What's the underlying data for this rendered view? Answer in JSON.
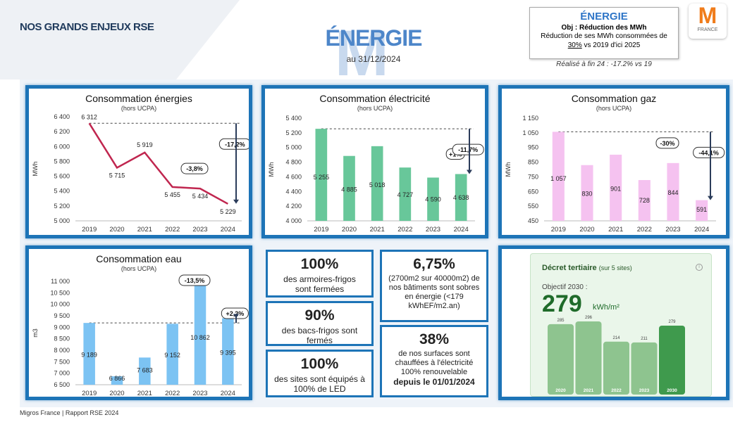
{
  "header": {
    "section_title": "NOS GRANDS ENJEUX RSE",
    "bg_letter": "M",
    "theme_title": "ÉNERGIE",
    "date": "au 31/12/2024"
  },
  "objective": {
    "title": "ÉNERGIE",
    "obj_label": "Obj : Réduction des MWh",
    "line1": "Réduction de ses MWh consommées de",
    "pct": "30%",
    "line2_suffix": " vs 2019 d'ici 2025",
    "realise": "Réalisé à fin 24 : -17.2% vs 19"
  },
  "logo": {
    "letter": "M",
    "sub": "FRANCE",
    "color": "#f07c1b"
  },
  "colors": {
    "blue": "#1d74b7",
    "line": "#c0264f",
    "green": "#68c79a",
    "pink": "#f5c2f0",
    "water": "#7cc3f3"
  },
  "chart_data": [
    {
      "type": "line",
      "title": "Consommation énergies",
      "subtitle": "(hors UCPA)",
      "ylabel": "MWh",
      "categories": [
        "2019",
        "2020",
        "2021",
        "2022",
        "2023",
        "2024"
      ],
      "values": [
        6312,
        5715,
        5919,
        5455,
        5434,
        5229
      ],
      "value_labels": [
        "6 312",
        "5 715",
        "5 919",
        "5 455",
        "5 434",
        "5 229"
      ],
      "yticks": [
        5000,
        5200,
        5400,
        5600,
        5800,
        6000,
        6200,
        6400
      ],
      "ytick_labels": [
        "5 000",
        "5 200",
        "5 400",
        "5 600",
        "5 800",
        "6 000",
        "6 200",
        "6 400"
      ],
      "ylim": [
        5000,
        6400
      ],
      "annotations": [
        "-3,8%",
        "-17,2%"
      ]
    },
    {
      "type": "bar",
      "title": "Consommation électricité",
      "subtitle": "(hors UCPA)",
      "ylabel": "MWh",
      "categories": [
        "2019",
        "2020",
        "2021",
        "2022",
        "2023",
        "2024"
      ],
      "values": [
        5255,
        4885,
        5018,
        4727,
        4590,
        4638
      ],
      "value_labels": [
        "5 255",
        "4 885",
        "5 018",
        "4 727",
        "4 590",
        "4 638"
      ],
      "yticks": [
        4000,
        4200,
        4400,
        4600,
        4800,
        5000,
        5200,
        5400
      ],
      "ytick_labels": [
        "4 000",
        "4 200",
        "4 400",
        "4 600",
        "4 800",
        "5 000",
        "5 200",
        "5 400"
      ],
      "ylim": [
        4000,
        5400
      ],
      "annotations": [
        "+1%",
        "-11,7%"
      ]
    },
    {
      "type": "bar",
      "title": "Consommation gaz",
      "subtitle": "(hors UCPA)",
      "ylabel": "MWh",
      "categories": [
        "2019",
        "2020",
        "2021",
        "2022",
        "2023",
        "2024"
      ],
      "values": [
        1057,
        830,
        901,
        728,
        844,
        591
      ],
      "value_labels": [
        "1 057",
        "830",
        "901",
        "728",
        "844",
        "591"
      ],
      "yticks": [
        450,
        550,
        650,
        750,
        850,
        950,
        1050,
        1150
      ],
      "ytick_labels": [
        "450",
        "550",
        "650",
        "750",
        "850",
        "950",
        "1 050",
        "1 150"
      ],
      "ylim": [
        450,
        1150
      ],
      "annotations": [
        "-30%",
        "-44,1%"
      ]
    },
    {
      "type": "bar",
      "title": "Consommation eau",
      "subtitle": "(hors UCPA)",
      "ylabel": "m3",
      "categories": [
        "2019",
        "2020",
        "2021",
        "2022",
        "2023",
        "2024"
      ],
      "values": [
        9189,
        6866,
        7683,
        9152,
        10862,
        9395
      ],
      "value_labels": [
        "9 189",
        "6 866",
        "7 683",
        "9 152",
        "10 862",
        "9 395"
      ],
      "yticks": [
        6500,
        7000,
        7500,
        8000,
        8500,
        9000,
        9500,
        10000,
        10500,
        11000
      ],
      "ytick_labels": [
        "6 500",
        "7 000",
        "7 500",
        "8 000",
        "8 500",
        "9 000",
        "9 500",
        "10 000",
        "10 500",
        "11 000"
      ],
      "ylim": [
        6500,
        11000
      ],
      "annotations": [
        "-13,5%",
        "+2,2%"
      ]
    },
    {
      "type": "bar",
      "title": "Décret tertiaire",
      "subtitle": "(sur 5 sites)",
      "objective_label": "Objectif 2030 :",
      "objective_value": "279",
      "objective_unit": "kWh/m²",
      "categories": [
        "2020",
        "2021",
        "2022",
        "2023",
        "2030"
      ],
      "values": [
        285,
        296,
        214,
        211,
        279
      ]
    }
  ],
  "stats": [
    {
      "value": "100%",
      "text": "des armoires-frigos sont fermées"
    },
    {
      "value": "90%",
      "text": "des bacs-frigos sont fermés"
    },
    {
      "value": "100%",
      "text": "des sites sont équipés à 100% de LED"
    },
    {
      "value": "6,75%",
      "text": "(2700m2 sur 40000m2) de nos bâtiments sont sobres en énergie (<179 kWhEF/m2.an)"
    },
    {
      "value": "38%",
      "text": "de nos surfaces sont chauffées à l'électricité 100% renouvelable",
      "bold": "depuis le 01/01/2024"
    }
  ],
  "footer": "Migros France | Rapport RSE 2024"
}
